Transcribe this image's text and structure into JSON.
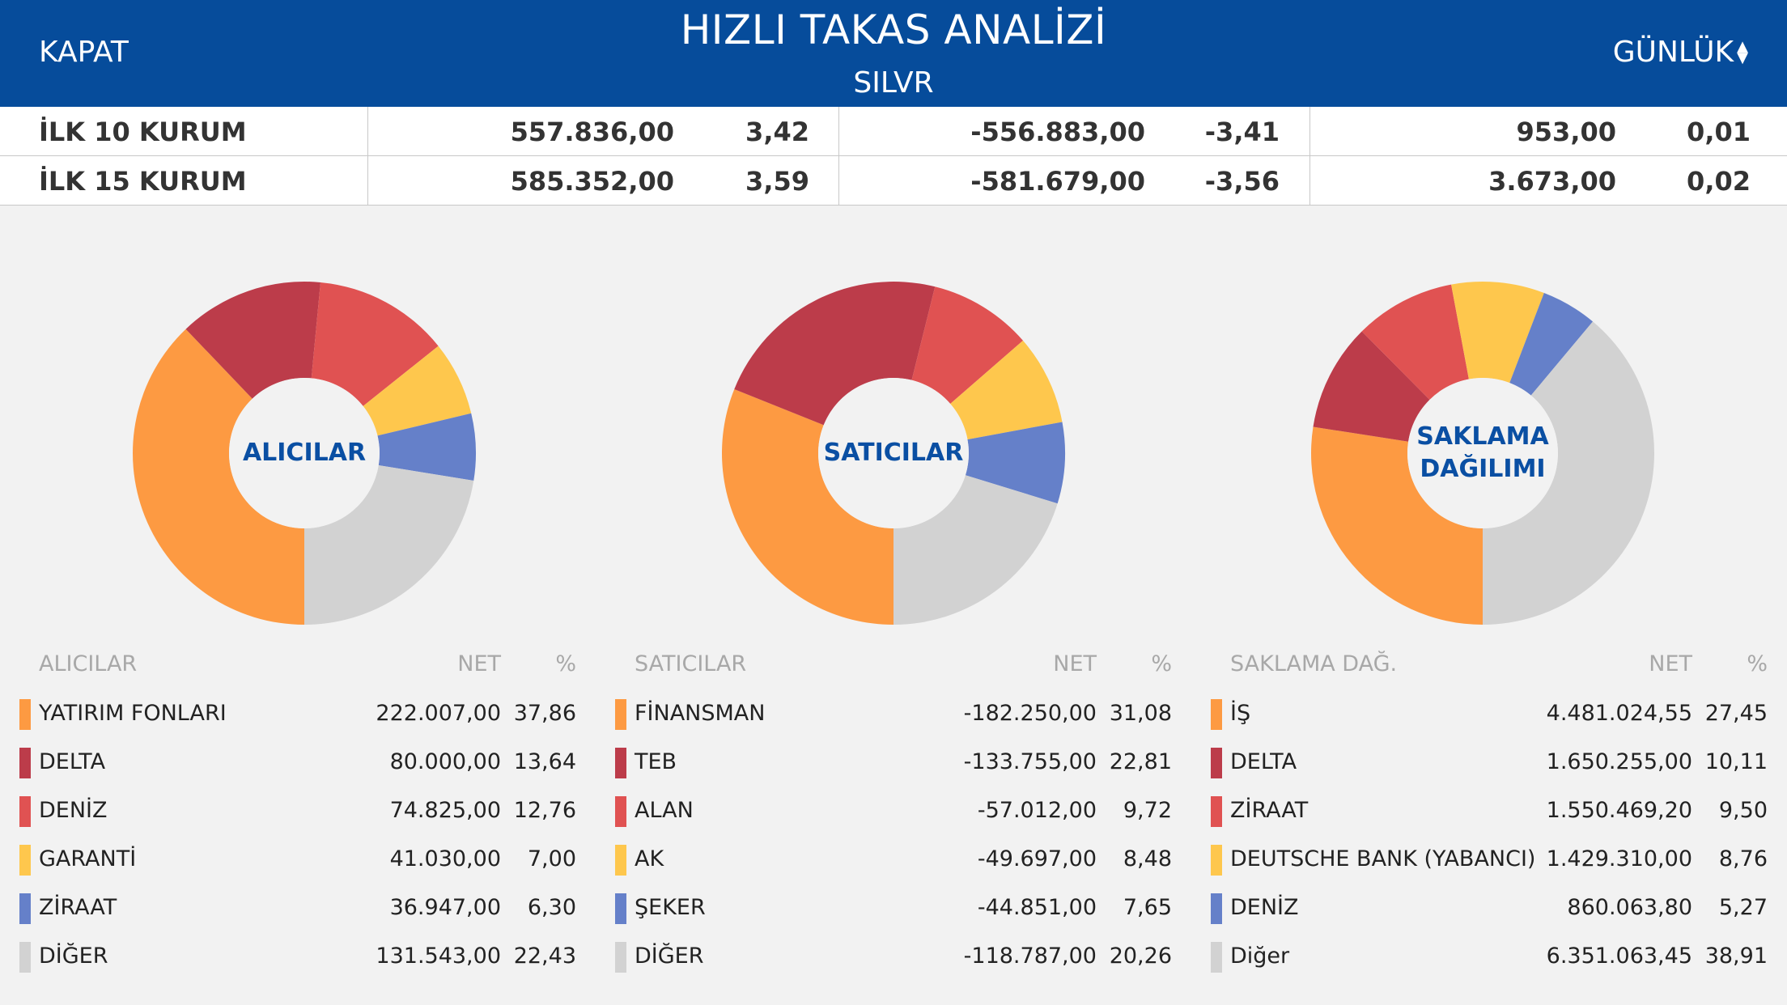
{
  "header": {
    "close_label": "KAPAT",
    "title": "HIZLI TAKAS ANALİZİ",
    "subtitle": "SILVR",
    "period_label": "GÜNLÜK"
  },
  "summary": {
    "rows": [
      {
        "label": "İLK 10 KURUM",
        "buy_net": "557.836,00",
        "buy_pct": "3,42",
        "sell_net": "-556.883,00",
        "sell_pct": "-3,41",
        "diff_net": "953,00",
        "diff_pct": "0,01"
      },
      {
        "label": "İLK 15 KURUM",
        "buy_net": "585.352,00",
        "buy_pct": "3,59",
        "sell_net": "-581.679,00",
        "sell_pct": "-3,56",
        "diff_net": "3.673,00",
        "diff_pct": "0,02"
      }
    ]
  },
  "colors": {
    "header_bg": "#064c9b",
    "orange": "#fd9a42",
    "dark_red": "#bc3c4a",
    "red": "#e05252",
    "yellow": "#fec74d",
    "blue": "#6580c9",
    "gray": "#d2d2d2",
    "center_text": "#0a4fa3"
  },
  "chart_data": [
    {
      "type": "pie",
      "center_label": "ALICILAR",
      "categories": [
        "YATIRIM FONLARI",
        "DELTA",
        "DENİZ",
        "GARANTİ",
        "ZİRAAT",
        "DİĞER"
      ],
      "values": [
        37.86,
        13.64,
        12.76,
        7.0,
        6.3,
        22.43
      ],
      "colors": [
        "#fd9a42",
        "#bc3c4a",
        "#e05252",
        "#fec74d",
        "#6580c9",
        "#d2d2d2"
      ]
    },
    {
      "type": "pie",
      "center_label": "SATICILAR",
      "categories": [
        "FİNANSMAN",
        "TEB",
        "ALAN",
        "AK",
        "ŞEKER",
        "DİĞER"
      ],
      "values": [
        31.08,
        22.81,
        9.72,
        8.48,
        7.65,
        20.26
      ],
      "colors": [
        "#fd9a42",
        "#bc3c4a",
        "#e05252",
        "#fec74d",
        "#6580c9",
        "#d2d2d2"
      ]
    },
    {
      "type": "pie",
      "center_label_lines": [
        "SAKLAMA",
        "DAĞILIMI"
      ],
      "categories": [
        "İŞ",
        "DELTA",
        "ZİRAAT",
        "DEUTSCHE BANK (YABANCI)",
        "DENİZ",
        "Diğer"
      ],
      "values": [
        27.45,
        10.11,
        9.5,
        8.76,
        5.27,
        38.91
      ],
      "colors": [
        "#fd9a42",
        "#bc3c4a",
        "#e05252",
        "#fec74d",
        "#6580c9",
        "#d2d2d2"
      ]
    }
  ],
  "tables": [
    {
      "head": {
        "name": "ALICILAR",
        "net": "NET",
        "pct": "%"
      },
      "rows": [
        {
          "name": "YATIRIM FONLARI",
          "net": "222.007,00",
          "pct": "37,86"
        },
        {
          "name": "DELTA",
          "net": "80.000,00",
          "pct": "13,64"
        },
        {
          "name": "DENİZ",
          "net": "74.825,00",
          "pct": "12,76"
        },
        {
          "name": "GARANTİ",
          "net": "41.030,00",
          "pct": "7,00"
        },
        {
          "name": "ZİRAAT",
          "net": "36.947,00",
          "pct": "6,30"
        },
        {
          "name": "DİĞER",
          "net": "131.543,00",
          "pct": "22,43"
        }
      ]
    },
    {
      "head": {
        "name": "SATICILAR",
        "net": "NET",
        "pct": "%"
      },
      "rows": [
        {
          "name": "FİNANSMAN",
          "net": "-182.250,00",
          "pct": "31,08"
        },
        {
          "name": "TEB",
          "net": "-133.755,00",
          "pct": "22,81"
        },
        {
          "name": "ALAN",
          "net": "-57.012,00",
          "pct": "9,72"
        },
        {
          "name": "AK",
          "net": "-49.697,00",
          "pct": "8,48"
        },
        {
          "name": "ŞEKER",
          "net": "-44.851,00",
          "pct": "7,65"
        },
        {
          "name": "DİĞER",
          "net": "-118.787,00",
          "pct": "20,26"
        }
      ]
    },
    {
      "head": {
        "name": "SAKLAMA DAĞ.",
        "net": "NET",
        "pct": "%"
      },
      "rows": [
        {
          "name": "İŞ",
          "net": "4.481.024,55",
          "pct": "27,45"
        },
        {
          "name": "DELTA",
          "net": "1.650.255,00",
          "pct": "10,11"
        },
        {
          "name": "ZİRAAT",
          "net": "1.550.469,20",
          "pct": "9,50"
        },
        {
          "name": "DEUTSCHE BANK (YABANCI)",
          "net": "1.429.310,00",
          "pct": "8,76"
        },
        {
          "name": "DENİZ",
          "net": "860.063,80",
          "pct": "5,27"
        },
        {
          "name": "Diğer",
          "net": "6.351.063,45",
          "pct": "38,91"
        }
      ]
    }
  ]
}
